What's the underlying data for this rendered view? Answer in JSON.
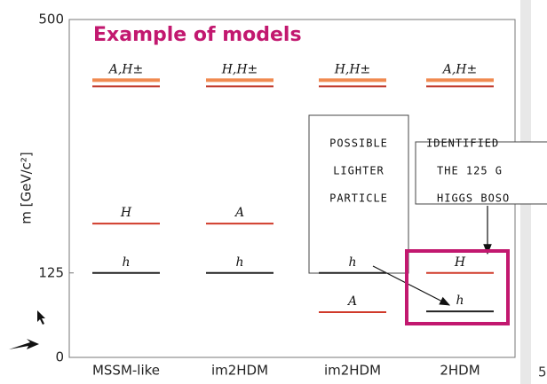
{
  "chart_data": {
    "type": "level",
    "title": "Example of models",
    "y_label": "m [GeV/c²]",
    "ylim": [
      0,
      500
    ],
    "yticks": [
      0,
      125,
      500
    ],
    "categories": [
      "MSSM-like",
      "im2HDM",
      "im2HDM",
      "2HDM"
    ],
    "levels": [
      [
        {
          "label": "A,H±",
          "value": 405,
          "kind": "heavy"
        },
        {
          "label": "H",
          "value": 198,
          "kind": "mid"
        },
        {
          "label": "h",
          "value": 125,
          "kind": "light"
        }
      ],
      [
        {
          "label": "H,H±",
          "value": 405,
          "kind": "heavy"
        },
        {
          "label": "A",
          "value": 198,
          "kind": "mid"
        },
        {
          "label": "h",
          "value": 125,
          "kind": "light"
        }
      ],
      [
        {
          "label": "H,H±",
          "value": 405,
          "kind": "heavy"
        },
        {
          "label": "h",
          "value": 125,
          "kind": "light"
        },
        {
          "label": "A",
          "value": 67,
          "kind": "mid"
        }
      ],
      [
        {
          "label": "A,H±",
          "value": 405,
          "kind": "heavy"
        },
        {
          "label": "H",
          "value": 125,
          "kind": "mid"
        },
        {
          "label": "h",
          "value": 68,
          "kind": "light"
        }
      ]
    ],
    "colors": {
      "heavy": "#f08a50",
      "heavy_under": "#c0392b",
      "mid": "#d03a2a",
      "light": "#222222"
    },
    "callouts": [
      {
        "lines": [
          "POSSIBLE",
          "LIGHTER",
          "PARTICLE"
        ]
      },
      {
        "lines": [
          "IDENTIFIED",
          "THE 125 G",
          "HIGGS BOSO"
        ]
      }
    ],
    "page_number": "5"
  }
}
